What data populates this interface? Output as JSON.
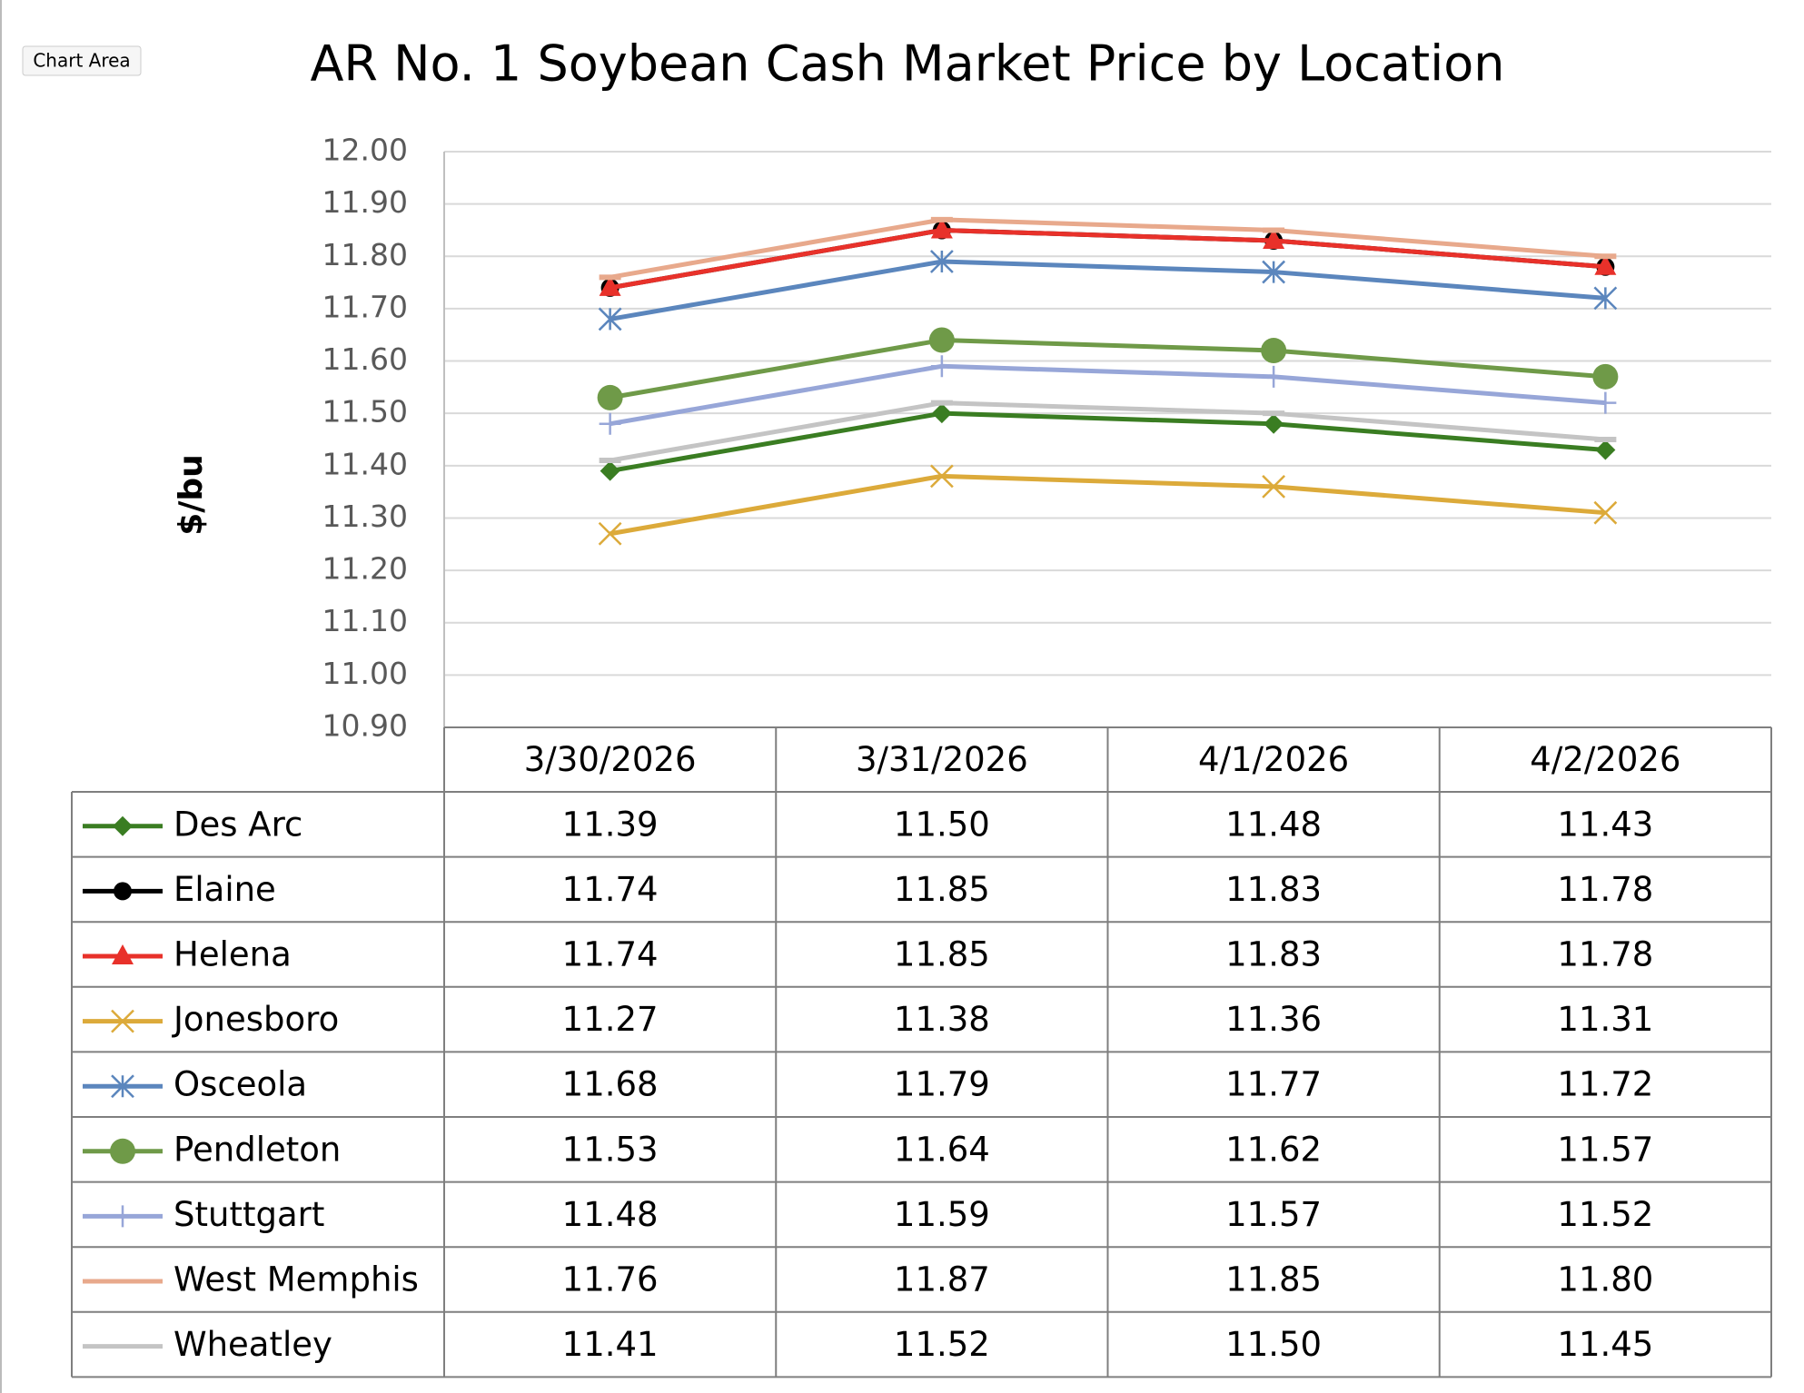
{
  "tooltip": "Chart Area",
  "chart_data": {
    "type": "line",
    "title": "AR No. 1 Soybean Cash Market Price by Location",
    "y_label": "$/bu",
    "categories": [
      "3/30/2026",
      "3/31/2026",
      "4/1/2026",
      "4/2/2026"
    ],
    "ylim": [
      10.9,
      12.0
    ],
    "yticks": [
      {
        "value": 10.9,
        "label": "10.90"
      },
      {
        "value": 11.0,
        "label": "11.00"
      },
      {
        "value": 11.1,
        "label": "11.10"
      },
      {
        "value": 11.2,
        "label": "11.20"
      },
      {
        "value": 11.3,
        "label": "11.30"
      },
      {
        "value": 11.4,
        "label": "11.40"
      },
      {
        "value": 11.5,
        "label": "11.50"
      },
      {
        "value": 11.6,
        "label": "11.60"
      },
      {
        "value": 11.7,
        "label": "11.70"
      },
      {
        "value": 11.8,
        "label": "11.80"
      },
      {
        "value": 11.9,
        "label": "11.90"
      },
      {
        "value": 12.0,
        "label": "12.00"
      }
    ],
    "grid": true,
    "series": [
      {
        "name": "Des Arc",
        "color": "#3a7d22",
        "marker": "diamond",
        "values": [
          11.39,
          11.5,
          11.48,
          11.43
        ],
        "value_labels": [
          "11.39",
          "11.50",
          "11.48",
          "11.43"
        ]
      },
      {
        "name": "Elaine",
        "color": "#000000",
        "marker": "circle",
        "values": [
          11.74,
          11.85,
          11.83,
          11.78
        ],
        "value_labels": [
          "11.74",
          "11.85",
          "11.83",
          "11.78"
        ]
      },
      {
        "name": "Helena",
        "color": "#e8312a",
        "marker": "triangle",
        "values": [
          11.74,
          11.85,
          11.83,
          11.78
        ],
        "value_labels": [
          "11.74",
          "11.85",
          "11.83",
          "11.78"
        ]
      },
      {
        "name": "Jonesboro",
        "color": "#dcaa3a",
        "marker": "x",
        "values": [
          11.27,
          11.38,
          11.36,
          11.31
        ],
        "value_labels": [
          "11.27",
          "11.38",
          "11.36",
          "11.31"
        ]
      },
      {
        "name": "Osceola",
        "color": "#5b86bd",
        "marker": "asterisk",
        "values": [
          11.68,
          11.79,
          11.77,
          11.72
        ],
        "value_labels": [
          "11.68",
          "11.79",
          "11.77",
          "11.72"
        ]
      },
      {
        "name": "Pendleton",
        "color": "#6f9a48",
        "marker": "big-circle",
        "values": [
          11.53,
          11.64,
          11.62,
          11.57
        ],
        "value_labels": [
          "11.53",
          "11.64",
          "11.62",
          "11.57"
        ]
      },
      {
        "name": "Stuttgart",
        "color": "#97a6d8",
        "marker": "plus",
        "values": [
          11.48,
          11.59,
          11.57,
          11.52
        ],
        "value_labels": [
          "11.48",
          "11.59",
          "11.57",
          "11.52"
        ]
      },
      {
        "name": "West Memphis",
        "color": "#e8a98c",
        "marker": "dash",
        "values": [
          11.76,
          11.87,
          11.85,
          11.8
        ],
        "value_labels": [
          "11.76",
          "11.87",
          "11.85",
          "11.80"
        ]
      },
      {
        "name": "Wheatley",
        "color": "#c4c4c4",
        "marker": "dash",
        "values": [
          11.41,
          11.52,
          11.5,
          11.45
        ],
        "value_labels": [
          "11.41",
          "11.52",
          "11.50",
          "11.45"
        ]
      }
    ]
  }
}
